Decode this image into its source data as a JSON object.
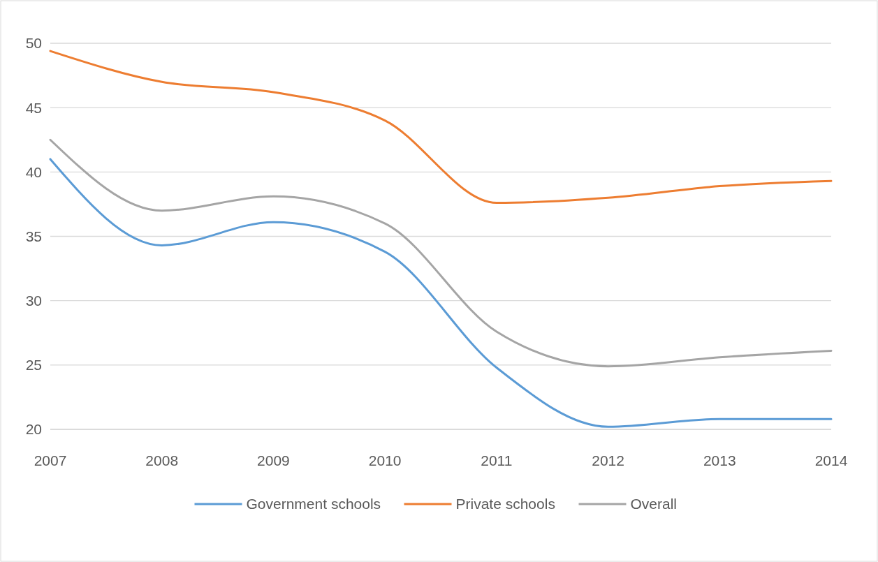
{
  "chart_data": {
    "type": "line",
    "x": [
      2007,
      2008,
      2009,
      2010,
      2011,
      2012,
      2013,
      2014
    ],
    "xlim": [
      2007,
      2014
    ],
    "xticks": [
      2007,
      2008,
      2009,
      2010,
      2011,
      2012,
      2013,
      2014
    ],
    "ylim": [
      20,
      50
    ],
    "yticks": [
      20,
      25,
      30,
      35,
      40,
      45,
      50
    ],
    "grid": "y",
    "legend": "bottom",
    "marker": "none",
    "line_style": "solid",
    "series": [
      {
        "name": "Government schools",
        "color": "#5b9bd5",
        "values": [
          41.0,
          34.3,
          36.1,
          33.8,
          24.8,
          20.2,
          20.8,
          20.8
        ]
      },
      {
        "name": "Private schools",
        "color": "#ed7d31",
        "values": [
          49.4,
          47.0,
          46.2,
          44.0,
          37.6,
          38.0,
          38.9,
          39.3
        ]
      },
      {
        "name": "Overall",
        "color": "#a5a5a5",
        "values": [
          42.5,
          37.0,
          38.1,
          36.0,
          27.6,
          24.9,
          25.6,
          26.1
        ]
      }
    ]
  }
}
